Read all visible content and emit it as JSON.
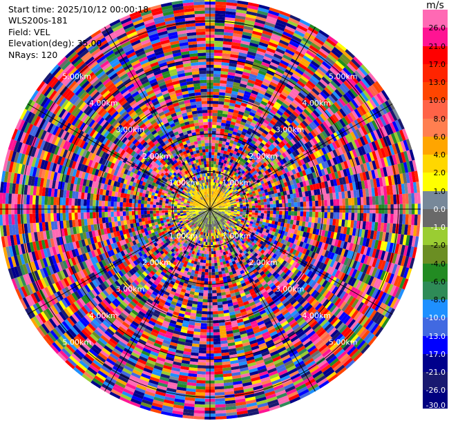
{
  "header": {
    "start_time": "Start time: 2025/10/12 00:00:18",
    "instrument": "WLS200s-181",
    "field": "Field: VEL",
    "elevation": "Elevation(deg): 35.00",
    "nrays": "NRays: 120"
  },
  "colorbar": {
    "unit": "m/s",
    "levels": [
      "26.0",
      "21.0",
      "17.0",
      "13.0",
      "10.0",
      "8.0",
      "6.0",
      "4.0",
      "2.0",
      "1.0",
      "0.0",
      "-1.0",
      "-2.0",
      "-4.0",
      "-6.0",
      "-8.0",
      "-10.0",
      "-13.0",
      "-17.0",
      "-21.0",
      "-26.0",
      "-30.0"
    ],
    "colors": [
      "#ff69b4",
      "#ff1493",
      "#ff0000",
      "#ff2400",
      "#ff4500",
      "#ff6347",
      "#ff7f50",
      "#ffa500",
      "#ffd700",
      "#ffff00",
      "#778899",
      "#696969",
      "#9acd32",
      "#6b8e23",
      "#228b22",
      "#2e8b57",
      "#1e90ff",
      "#4169e1",
      "#0000ff",
      "#00008b",
      "#191970",
      "#000080"
    ]
  },
  "chart_data": {
    "type": "heatmap",
    "projection": "polar PPI",
    "field": "VEL",
    "unit": "m/s",
    "elevation_deg": 35.0,
    "n_rays": 120,
    "range_ring_labels": [
      "1.00km",
      "2.00km",
      "3.00km",
      "4.00km",
      "5.00km"
    ],
    "range_rings_km": [
      1,
      2,
      3,
      4,
      5
    ],
    "color_levels": [
      26.0,
      21.0,
      17.0,
      13.0,
      10.0,
      8.0,
      6.0,
      4.0,
      2.0,
      1.0,
      0.0,
      -1.0,
      -2.0,
      -4.0,
      -6.0,
      -8.0,
      -10.0,
      -13.0,
      -17.0,
      -21.0,
      -26.0,
      -30.0
    ],
    "near_range_pattern": "yellow (1–2 m/s) northern core, olive/green (-1 to -2 m/s) southern core; outer gates noisy across full scale"
  }
}
